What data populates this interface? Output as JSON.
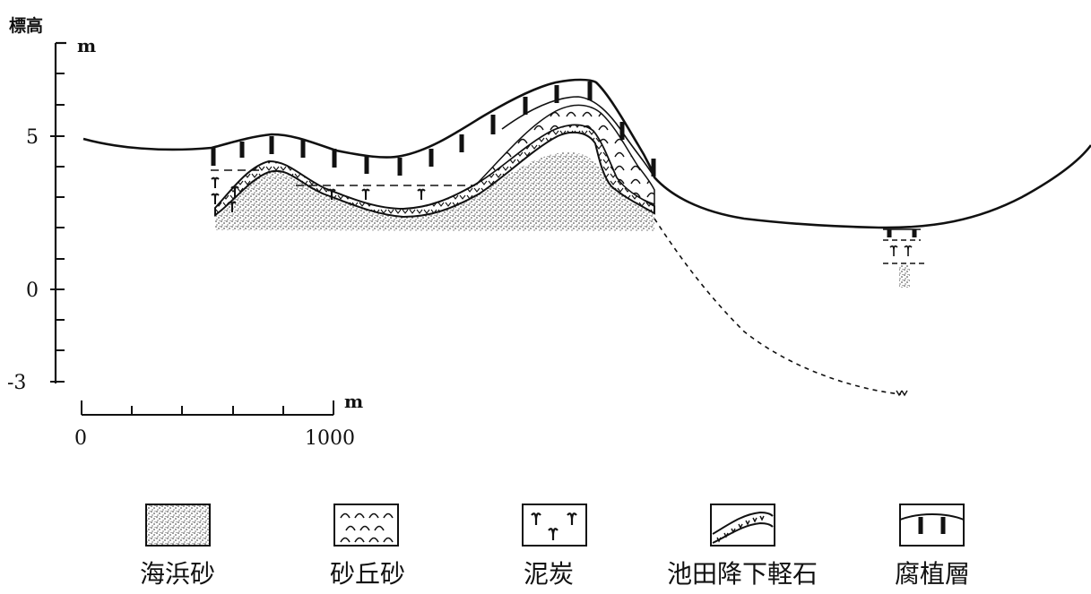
{
  "figure": {
    "y_axis_title": "標高",
    "y_unit": "m",
    "y_ticks": [
      "5",
      "0",
      "-3"
    ],
    "scale_bar": {
      "unit": "m",
      "start": "0",
      "end": "1000"
    }
  },
  "legend": [
    {
      "label": "海浜砂",
      "icon": "dotted-sand-pattern"
    },
    {
      "label": "砂丘砂",
      "icon": "arc-dune-pattern"
    },
    {
      "label": "泥炭",
      "icon": "peat-symbol-pattern"
    },
    {
      "label": "池田降下軽石",
      "icon": "pumice-layer-pattern"
    },
    {
      "label": "腐植層",
      "icon": "humus-bar-pattern"
    }
  ]
}
